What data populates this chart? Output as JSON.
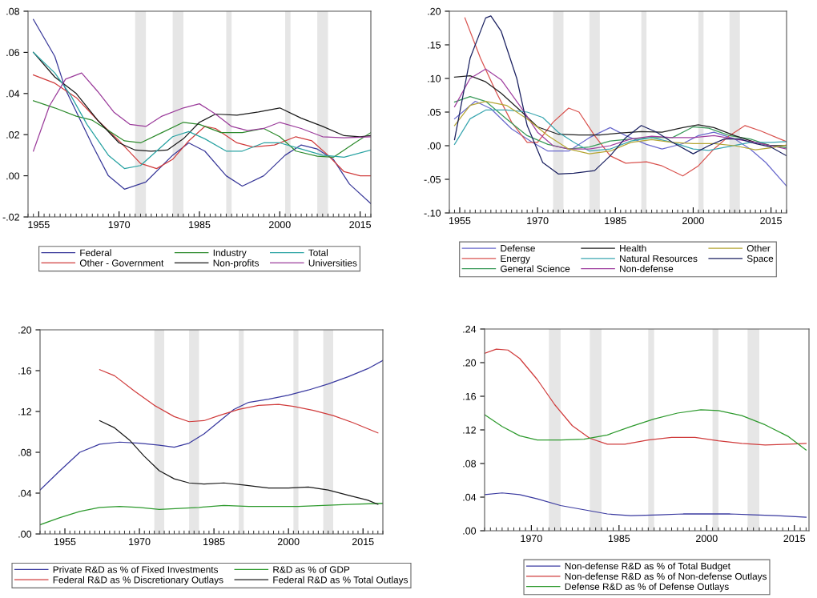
{
  "chart_data": [
    {
      "type": "line",
      "xlim": [
        1953,
        2017
      ],
      "xticks": [
        1955,
        1970,
        1985,
        2000,
        2015
      ],
      "ylim": [
        -0.02,
        0.08
      ],
      "yticks": [
        {
          "value": -0.02,
          "label": "-.02"
        },
        {
          "value": 0.0,
          "label": ".00"
        },
        {
          "value": 0.02,
          "label": ".02"
        },
        {
          "value": 0.04,
          "label": ".04"
        },
        {
          "value": 0.06,
          "label": ".06"
        },
        {
          "value": 0.08,
          "label": ".08"
        }
      ],
      "grid": false,
      "legend": "bottom",
      "line_style": "solid",
      "bands": [
        {
          "axis": "x",
          "from": 1973,
          "to": 1975,
          "color": "#e6e6e6"
        },
        {
          "axis": "x",
          "from": 1980,
          "to": 1982,
          "color": "#e6e6e6"
        },
        {
          "axis": "x",
          "from": 1990,
          "to": 1991,
          "color": "#e6e6e6"
        },
        {
          "axis": "x",
          "from": 2001,
          "to": 2002,
          "color": "#e6e6e6"
        },
        {
          "axis": "x",
          "from": 2007,
          "to": 2009,
          "color": "#e6e6e6"
        }
      ],
      "series": [
        {
          "name": "Federal",
          "color": "#3a3a9a",
          "x": [
            1954,
            1958,
            1960,
            1965,
            1968,
            1971,
            1975,
            1980,
            1983,
            1986,
            1990,
            1993,
            1997,
            2001,
            2004,
            2007,
            2010,
            2013,
            2017
          ],
          "values": [
            0.076,
            0.058,
            0.042,
            0.015,
            0.0,
            -0.0065,
            -0.003,
            0.01,
            0.016,
            0.012,
            0.0,
            -0.005,
            0.0,
            0.01,
            0.015,
            0.013,
            0.008,
            -0.004,
            -0.0135
          ]
        },
        {
          "name": "Other - Government",
          "color": "#d03c3c",
          "x": [
            1954,
            1958,
            1962,
            1966,
            1970,
            1974,
            1977,
            1980,
            1983,
            1986,
            1988,
            1992,
            1995,
            1999,
            2003,
            2006,
            2009,
            2012,
            2015,
            2017
          ],
          "values": [
            0.049,
            0.045,
            0.038,
            0.027,
            0.017,
            0.006,
            0.0035,
            0.008,
            0.017,
            0.024,
            0.023,
            0.016,
            0.014,
            0.015,
            0.019,
            0.017,
            0.01,
            0.002,
            0.0,
            0.0
          ]
        },
        {
          "name": "Industry",
          "color": "#2e8b2e",
          "x": [
            1954,
            1958,
            1962,
            1965,
            1968,
            1971,
            1974,
            1978,
            1982,
            1985,
            1989,
            1993,
            1997,
            2000,
            2003,
            2007,
            2010,
            2014,
            2017
          ],
          "values": [
            0.0365,
            0.033,
            0.029,
            0.027,
            0.022,
            0.017,
            0.016,
            0.021,
            0.026,
            0.025,
            0.021,
            0.021,
            0.023,
            0.019,
            0.012,
            0.0095,
            0.009,
            0.016,
            0.021
          ]
        },
        {
          "name": "Non-profits",
          "color": "#1a1a1a",
          "x": [
            1954,
            1958,
            1962,
            1966,
            1970,
            1973,
            1976,
            1979,
            1982,
            1985,
            1988,
            1992,
            1996,
            2000,
            2004,
            2008,
            2012,
            2015,
            2017
          ],
          "values": [
            0.06,
            0.048,
            0.04,
            0.027,
            0.016,
            0.0125,
            0.012,
            0.0125,
            0.018,
            0.026,
            0.03,
            0.0295,
            0.031,
            0.033,
            0.028,
            0.024,
            0.0195,
            0.019,
            0.0195
          ]
        },
        {
          "name": "Total",
          "color": "#2aa3a3",
          "x": [
            1954,
            1958,
            1961,
            1964,
            1968,
            1971,
            1974,
            1977,
            1980,
            1983,
            1986,
            1990,
            1993,
            1997,
            2000,
            2004,
            2008,
            2012,
            2017
          ],
          "values": [
            0.06,
            0.05,
            0.039,
            0.025,
            0.01,
            0.0035,
            0.005,
            0.012,
            0.019,
            0.0215,
            0.018,
            0.012,
            0.012,
            0.016,
            0.016,
            0.013,
            0.01,
            0.009,
            0.0125
          ]
        },
        {
          "name": "Universities",
          "color": "#9b3c9b",
          "x": [
            1954,
            1957,
            1960,
            1963,
            1966,
            1969,
            1972,
            1975,
            1978,
            1982,
            1985,
            1988,
            1991,
            1994,
            1997,
            2000,
            2004,
            2008,
            2012,
            2017
          ],
          "values": [
            0.012,
            0.034,
            0.047,
            0.05,
            0.041,
            0.031,
            0.025,
            0.024,
            0.029,
            0.033,
            0.035,
            0.03,
            0.024,
            0.022,
            0.023,
            0.026,
            0.023,
            0.019,
            0.0185,
            0.019
          ]
        }
      ]
    },
    {
      "type": "line",
      "xlim": [
        1953,
        2018
      ],
      "xticks": [
        1955,
        1970,
        1985,
        2000,
        2015
      ],
      "ylim": [
        -0.1,
        0.2
      ],
      "yticks": [
        {
          "value": -0.1,
          "label": "-.10"
        },
        {
          "value": -0.05,
          "label": "-.05"
        },
        {
          "value": 0.0,
          "label": ".00"
        },
        {
          "value": 0.05,
          "label": ".05"
        },
        {
          "value": 0.1,
          "label": ".10"
        },
        {
          "value": 0.15,
          "label": ".15"
        },
        {
          "value": 0.2,
          "label": ".20"
        }
      ],
      "grid": false,
      "legend": "bottom",
      "line_style": "solid",
      "bands": [
        {
          "axis": "x",
          "from": 1973,
          "to": 1975,
          "color": "#e6e6e6"
        },
        {
          "axis": "x",
          "from": 1980,
          "to": 1982,
          "color": "#e6e6e6"
        },
        {
          "axis": "x",
          "from": 1990,
          "to": 1991,
          "color": "#e6e6e6"
        },
        {
          "axis": "x",
          "from": 2001,
          "to": 2002,
          "color": "#e6e6e6"
        },
        {
          "axis": "x",
          "from": 2007,
          "to": 2009,
          "color": "#e6e6e6"
        }
      ],
      "series": [
        {
          "name": "Defense",
          "color": "#6a6acd",
          "x": [
            1954,
            1958,
            1961,
            1965,
            1969,
            1972,
            1976,
            1980,
            1984,
            1987,
            1991,
            1994,
            1998,
            2001,
            2004,
            2008,
            2011,
            2014,
            2018
          ],
          "values": [
            0.04,
            0.066,
            0.055,
            0.025,
            0.005,
            -0.008,
            -0.008,
            0.012,
            0.027,
            0.015,
            0.002,
            -0.005,
            0.003,
            0.015,
            0.02,
            0.01,
            -0.005,
            -0.025,
            -0.06
          ]
        },
        {
          "name": "Energy",
          "color": "#d9534f",
          "x": [
            1956,
            1959,
            1962,
            1965,
            1968,
            1970,
            1973,
            1976,
            1978,
            1981,
            1984,
            1987,
            1991,
            1994,
            1998,
            2001,
            2004,
            2007,
            2010,
            2013,
            2018
          ],
          "values": [
            0.19,
            0.13,
            0.08,
            0.035,
            0.005,
            0.005,
            0.035,
            0.056,
            0.05,
            0.015,
            -0.015,
            -0.026,
            -0.024,
            -0.03,
            -0.045,
            -0.03,
            -0.005,
            0.015,
            0.03,
            0.022,
            0.006
          ]
        },
        {
          "name": "General Science",
          "color": "#3a9a5a",
          "x": [
            1954,
            1957,
            1960,
            1964,
            1968,
            1972,
            1976,
            1980,
            1984,
            1988,
            1992,
            1996,
            2000,
            2003,
            2007,
            2011,
            2015,
            2018
          ],
          "values": [
            0.065,
            0.073,
            0.066,
            0.04,
            0.015,
            0.002,
            -0.005,
            -0.002,
            0.007,
            0.01,
            0.012,
            0.012,
            0.028,
            0.026,
            0.015,
            0.01,
            0.0,
            -0.003
          ]
        },
        {
          "name": "Health",
          "color": "#222222",
          "x": [
            1954,
            1957,
            1960,
            1963,
            1967,
            1970,
            1974,
            1978,
            1982,
            1986,
            1990,
            1994,
            1998,
            2001,
            2004,
            2008,
            2012,
            2015,
            2018
          ],
          "values": [
            0.102,
            0.104,
            0.095,
            0.078,
            0.05,
            0.028,
            0.017,
            0.016,
            0.016,
            0.019,
            0.021,
            0.02,
            0.027,
            0.031,
            0.027,
            0.015,
            0.005,
            0.0,
            0.0
          ]
        },
        {
          "name": "Natural Resources",
          "color": "#3aa6b0",
          "x": [
            1954,
            1957,
            1960,
            1964,
            1968,
            1971,
            1974,
            1977,
            1980,
            1984,
            1988,
            1992,
            1996,
            2000,
            2003,
            2007,
            2011,
            2015,
            2018
          ],
          "values": [
            0.002,
            0.04,
            0.053,
            0.053,
            0.05,
            0.042,
            0.02,
            0.005,
            -0.008,
            -0.005,
            0.007,
            0.012,
            0.005,
            -0.005,
            -0.007,
            -0.001,
            0.005,
            0.005,
            0.006
          ]
        },
        {
          "name": "Non-defense",
          "color": "#a040a0",
          "x": [
            1954,
            1957,
            1960,
            1963,
            1967,
            1970,
            1973,
            1976,
            1980,
            1984,
            1988,
            1992,
            1996,
            2000,
            2004,
            2008,
            2012,
            2015,
            2018
          ],
          "values": [
            0.058,
            0.1,
            0.114,
            0.098,
            0.055,
            0.02,
            0.0,
            -0.005,
            -0.005,
            0.0,
            0.01,
            0.014,
            0.012,
            0.012,
            0.015,
            0.01,
            0.005,
            0.0,
            -0.005
          ]
        },
        {
          "name": "Other",
          "color": "#b5a634",
          "x": [
            1954,
            1957,
            1960,
            1964,
            1968,
            1972,
            1976,
            1980,
            1984,
            1988,
            1992,
            1996,
            2000,
            2004,
            2008,
            2012,
            2015,
            2018
          ],
          "values": [
            0.03,
            0.06,
            0.066,
            0.06,
            0.04,
            0.015,
            -0.005,
            -0.012,
            -0.008,
            0.005,
            0.009,
            0.005,
            0.003,
            0.003,
            0.0,
            -0.006,
            -0.003,
            0.001
          ]
        },
        {
          "name": "Space",
          "color": "#1a2060",
          "x": [
            1954,
            1957,
            1960,
            1961,
            1963,
            1966,
            1968,
            1971,
            1974,
            1977,
            1981,
            1984,
            1987,
            1990,
            1993,
            1996,
            2000,
            2003,
            2006,
            2009,
            2012,
            2015,
            2018
          ],
          "values": [
            0.009,
            0.13,
            0.19,
            0.193,
            0.17,
            0.1,
            0.03,
            -0.025,
            -0.042,
            -0.041,
            -0.037,
            -0.015,
            0.012,
            0.03,
            0.02,
            0.005,
            -0.012,
            0.0,
            0.01,
            0.01,
            0.003,
            -0.002,
            -0.015
          ]
        }
      ]
    },
    {
      "type": "line",
      "xlim": [
        1950,
        2019
      ],
      "xticks": [
        1955,
        1970,
        1985,
        2000,
        2015
      ],
      "ylim": [
        0.0,
        0.2
      ],
      "yticks": [
        {
          "value": 0.0,
          "label": ".00"
        },
        {
          "value": 0.04,
          "label": ".04"
        },
        {
          "value": 0.08,
          "label": ".08"
        },
        {
          "value": 0.12,
          "label": ".12"
        },
        {
          "value": 0.16,
          "label": ".16"
        },
        {
          "value": 0.2,
          "label": ".20"
        }
      ],
      "grid": false,
      "legend": "bottom",
      "line_style": "solid",
      "bands": [
        {
          "axis": "x",
          "from": 1973,
          "to": 1975,
          "color": "#e6e6e6"
        },
        {
          "axis": "x",
          "from": 1980,
          "to": 1982,
          "color": "#e6e6e6"
        },
        {
          "axis": "x",
          "from": 1990,
          "to": 1991,
          "color": "#e6e6e6"
        },
        {
          "axis": "x",
          "from": 2001,
          "to": 2002,
          "color": "#e6e6e6"
        },
        {
          "axis": "x",
          "from": 2007,
          "to": 2009,
          "color": "#e6e6e6"
        }
      ],
      "series": [
        {
          "name": "Private R&D as % of Fixed Investments",
          "color": "#3a3aa0",
          "x": [
            1950,
            1954,
            1958,
            1962,
            1966,
            1970,
            1974,
            1977,
            1980,
            1983,
            1986,
            1989,
            1992,
            1996,
            2000,
            2004,
            2008,
            2012,
            2016,
            2019
          ],
          "values": [
            0.043,
            0.062,
            0.08,
            0.088,
            0.09,
            0.089,
            0.087,
            0.085,
            0.089,
            0.098,
            0.11,
            0.122,
            0.129,
            0.132,
            0.136,
            0.141,
            0.147,
            0.154,
            0.162,
            0.17
          ]
        },
        {
          "name": "Federal R&D as % Discretionary Outlays",
          "color": "#d03c3c",
          "x": [
            1962,
            1965,
            1969,
            1973,
            1977,
            1980,
            1983,
            1986,
            1990,
            1994,
            1998,
            2001,
            2005,
            2009,
            2013,
            2018
          ],
          "values": [
            0.161,
            0.155,
            0.14,
            0.126,
            0.115,
            0.11,
            0.111,
            0.116,
            0.122,
            0.126,
            0.127,
            0.125,
            0.121,
            0.116,
            0.109,
            0.099
          ]
        },
        {
          "name": "R&D as % of GDP",
          "color": "#2e9a2e",
          "x": [
            1950,
            1954,
            1958,
            1962,
            1966,
            1970,
            1974,
            1978,
            1982,
            1987,
            1992,
            1997,
            2002,
            2007,
            2012,
            2019
          ],
          "values": [
            0.009,
            0.016,
            0.022,
            0.026,
            0.027,
            0.026,
            0.024,
            0.025,
            0.026,
            0.028,
            0.027,
            0.027,
            0.027,
            0.028,
            0.029,
            0.03
          ]
        },
        {
          "name": "Federal R&D as % Total Outlays",
          "color": "#1a1a1a",
          "x": [
            1962,
            1965,
            1968,
            1971,
            1974,
            1977,
            1980,
            1983,
            1987,
            1991,
            1996,
            2000,
            2004,
            2008,
            2012,
            2016,
            2018
          ],
          "values": [
            0.111,
            0.104,
            0.092,
            0.076,
            0.062,
            0.054,
            0.05,
            0.049,
            0.05,
            0.048,
            0.045,
            0.045,
            0.046,
            0.043,
            0.038,
            0.033,
            0.029
          ]
        }
      ]
    },
    {
      "type": "line",
      "xlim": [
        1962,
        2017.5
      ],
      "xticks": [
        1970,
        1985,
        2000,
        2015
      ],
      "ylim": [
        0.0,
        0.24
      ],
      "yticks": [
        {
          "value": 0.0,
          "label": ".00"
        },
        {
          "value": 0.04,
          "label": ".04"
        },
        {
          "value": 0.08,
          "label": ".08"
        },
        {
          "value": 0.12,
          "label": ".12"
        },
        {
          "value": 0.16,
          "label": ".16"
        },
        {
          "value": 0.2,
          "label": ".20"
        },
        {
          "value": 0.24,
          "label": ".24"
        }
      ],
      "grid": false,
      "legend": "bottom",
      "line_style": "solid",
      "bands": [
        {
          "axis": "x",
          "from": 1973,
          "to": 1975,
          "color": "#e6e6e6"
        },
        {
          "axis": "x",
          "from": 1980,
          "to": 1982,
          "color": "#e6e6e6"
        },
        {
          "axis": "x",
          "from": 1990,
          "to": 1991,
          "color": "#e6e6e6"
        },
        {
          "axis": "x",
          "from": 2001,
          "to": 2002,
          "color": "#e6e6e6"
        },
        {
          "axis": "x",
          "from": 2007,
          "to": 2009,
          "color": "#e6e6e6"
        }
      ],
      "series": [
        {
          "name": "Non-defense R&D as % of Total Budget",
          "color": "#3a3aa0",
          "x": [
            1962,
            1965,
            1968,
            1971,
            1975,
            1979,
            1983,
            1987,
            1992,
            1996,
            2000,
            2004,
            2008,
            2012,
            2017
          ],
          "values": [
            0.043,
            0.045,
            0.043,
            0.038,
            0.03,
            0.025,
            0.02,
            0.018,
            0.019,
            0.02,
            0.02,
            0.02,
            0.019,
            0.018,
            0.016
          ]
        },
        {
          "name": "Non-defense R&D as % of Non-defense Outlays",
          "color": "#d03c3c",
          "x": [
            1962,
            1964,
            1966,
            1968,
            1971,
            1974,
            1977,
            1980,
            1983,
            1986,
            1990,
            1994,
            1998,
            2002,
            2006,
            2010,
            2014,
            2017
          ],
          "values": [
            0.211,
            0.216,
            0.215,
            0.205,
            0.18,
            0.15,
            0.125,
            0.11,
            0.103,
            0.103,
            0.108,
            0.111,
            0.111,
            0.107,
            0.104,
            0.102,
            0.103,
            0.104
          ]
        },
        {
          "name": "Defense R&D as % of Defense Outlays",
          "color": "#2e9a2e",
          "x": [
            1962,
            1965,
            1968,
            1971,
            1975,
            1979,
            1983,
            1987,
            1991,
            1995,
            1999,
            2002,
            2006,
            2010,
            2014,
            2017
          ],
          "values": [
            0.138,
            0.124,
            0.113,
            0.108,
            0.108,
            0.109,
            0.114,
            0.124,
            0.133,
            0.14,
            0.144,
            0.143,
            0.137,
            0.126,
            0.112,
            0.096
          ]
        }
      ]
    }
  ]
}
